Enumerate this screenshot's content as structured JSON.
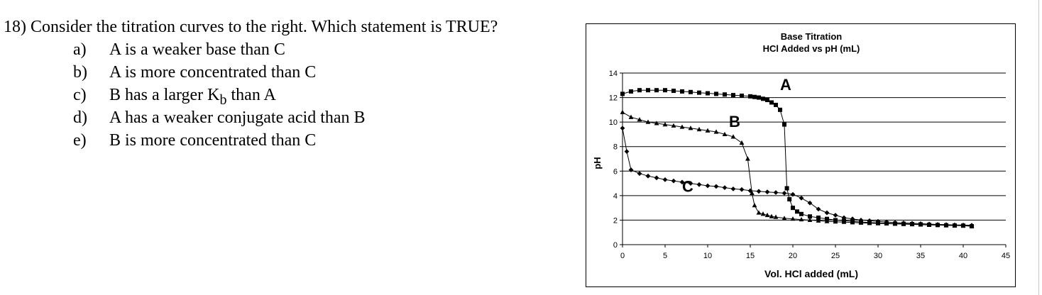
{
  "question": {
    "stem": "18) Consider the titration curves to the right.  Which statement is TRUE?",
    "choices": [
      {
        "letter": "a)",
        "text": "A is a weaker base than C"
      },
      {
        "letter": "b)",
        "text": "A is more concentrated than C"
      },
      {
        "letter": "c)",
        "text": "B has a larger K",
        "subscript": "b",
        "after": " than A"
      },
      {
        "letter": "d)",
        "text": "A has a weaker conjugate acid than B"
      },
      {
        "letter": "e)",
        "text": "B is more concentrated than C"
      }
    ]
  },
  "chart_data": {
    "type": "line",
    "title": "Base Titration",
    "subtitle": "HCl Added vs pH (mL)",
    "xlabel": "Vol. HCl added (mL)",
    "ylabel": "pH",
    "xlim": [
      0,
      45
    ],
    "ylim": [
      0,
      14
    ],
    "xticks": [
      0,
      5,
      10,
      15,
      20,
      25,
      30,
      35,
      40,
      45
    ],
    "yticks": [
      0,
      2,
      4,
      6,
      8,
      10,
      12,
      14
    ],
    "grid": "horizontal",
    "legend": "none",
    "series": [
      {
        "name": "A",
        "marker": "square",
        "x": [
          0,
          1,
          2,
          3,
          4,
          5,
          6,
          7,
          8,
          9,
          10,
          11,
          12,
          13,
          14,
          15,
          15.5,
          16,
          16.5,
          17,
          17.5,
          18,
          18.5,
          19,
          19.3,
          19.6,
          20,
          20.5,
          21,
          22,
          23,
          24,
          25,
          26,
          27,
          28,
          29,
          30,
          31,
          32,
          33,
          34,
          35,
          36,
          37,
          38,
          39,
          40,
          41
        ],
        "y": [
          12.3,
          12.5,
          12.6,
          12.6,
          12.6,
          12.6,
          12.55,
          12.5,
          12.45,
          12.4,
          12.35,
          12.3,
          12.25,
          12.2,
          12.15,
          12.1,
          12.05,
          12.0,
          11.9,
          11.8,
          11.6,
          11.4,
          11.0,
          9.8,
          4.6,
          3.7,
          3.0,
          2.7,
          2.5,
          2.3,
          2.2,
          2.1,
          2.0,
          1.95,
          1.9,
          1.85,
          1.8,
          1.78,
          1.75,
          1.72,
          1.7,
          1.68,
          1.65,
          1.62,
          1.6,
          1.58,
          1.56,
          1.55,
          1.5
        ]
      },
      {
        "name": "B",
        "marker": "triangle",
        "x": [
          0,
          1,
          2,
          3,
          4,
          5,
          6,
          7,
          8,
          9,
          10,
          11,
          12,
          13,
          14,
          14.7,
          15.2,
          15.5,
          16,
          16.5,
          17,
          17.5,
          18,
          19,
          20,
          21,
          22,
          23,
          24,
          25,
          26,
          27,
          28,
          29,
          30,
          31,
          32,
          33,
          34,
          35,
          36,
          37,
          38,
          39,
          40,
          41
        ],
        "y": [
          10.8,
          10.4,
          10.2,
          10.0,
          9.9,
          9.8,
          9.7,
          9.6,
          9.5,
          9.4,
          9.3,
          9.2,
          9.0,
          8.8,
          8.3,
          7.0,
          4.2,
          3.2,
          2.6,
          2.5,
          2.4,
          2.3,
          2.25,
          2.15,
          2.1,
          2.05,
          2.0,
          1.95,
          1.9,
          1.87,
          1.84,
          1.81,
          1.78,
          1.75,
          1.73,
          1.71,
          1.69,
          1.67,
          1.65,
          1.63,
          1.61,
          1.6,
          1.58,
          1.57,
          1.56,
          1.55
        ]
      },
      {
        "name": "C",
        "marker": "diamond",
        "x": [
          0,
          0.5,
          1,
          2,
          3,
          4,
          5,
          6,
          7,
          8,
          9,
          10,
          11,
          12,
          13,
          14,
          15,
          16,
          17,
          18,
          19,
          20,
          21,
          22,
          23,
          24,
          25,
          26,
          27,
          28,
          29,
          30,
          31,
          32,
          33,
          34,
          35,
          36,
          37,
          38,
          39,
          40,
          41
        ],
        "y": [
          9.5,
          7.6,
          6.1,
          5.8,
          5.6,
          5.45,
          5.3,
          5.2,
          5.1,
          5.0,
          4.9,
          4.8,
          4.75,
          4.65,
          4.55,
          4.5,
          4.4,
          4.35,
          4.3,
          4.25,
          4.2,
          4.1,
          3.8,
          3.4,
          2.9,
          2.6,
          2.4,
          2.2,
          2.1,
          2.0,
          1.95,
          1.9,
          1.85,
          1.8,
          1.77,
          1.74,
          1.71,
          1.68,
          1.65,
          1.63,
          1.61,
          1.6,
          1.58
        ]
      }
    ],
    "annotations": [
      {
        "text": "A",
        "x": 18.5,
        "y": 12.6
      },
      {
        "text": "B",
        "x": 12.5,
        "y": 9.6
      },
      {
        "text": "C",
        "x": 7,
        "y": 4.3
      }
    ]
  }
}
